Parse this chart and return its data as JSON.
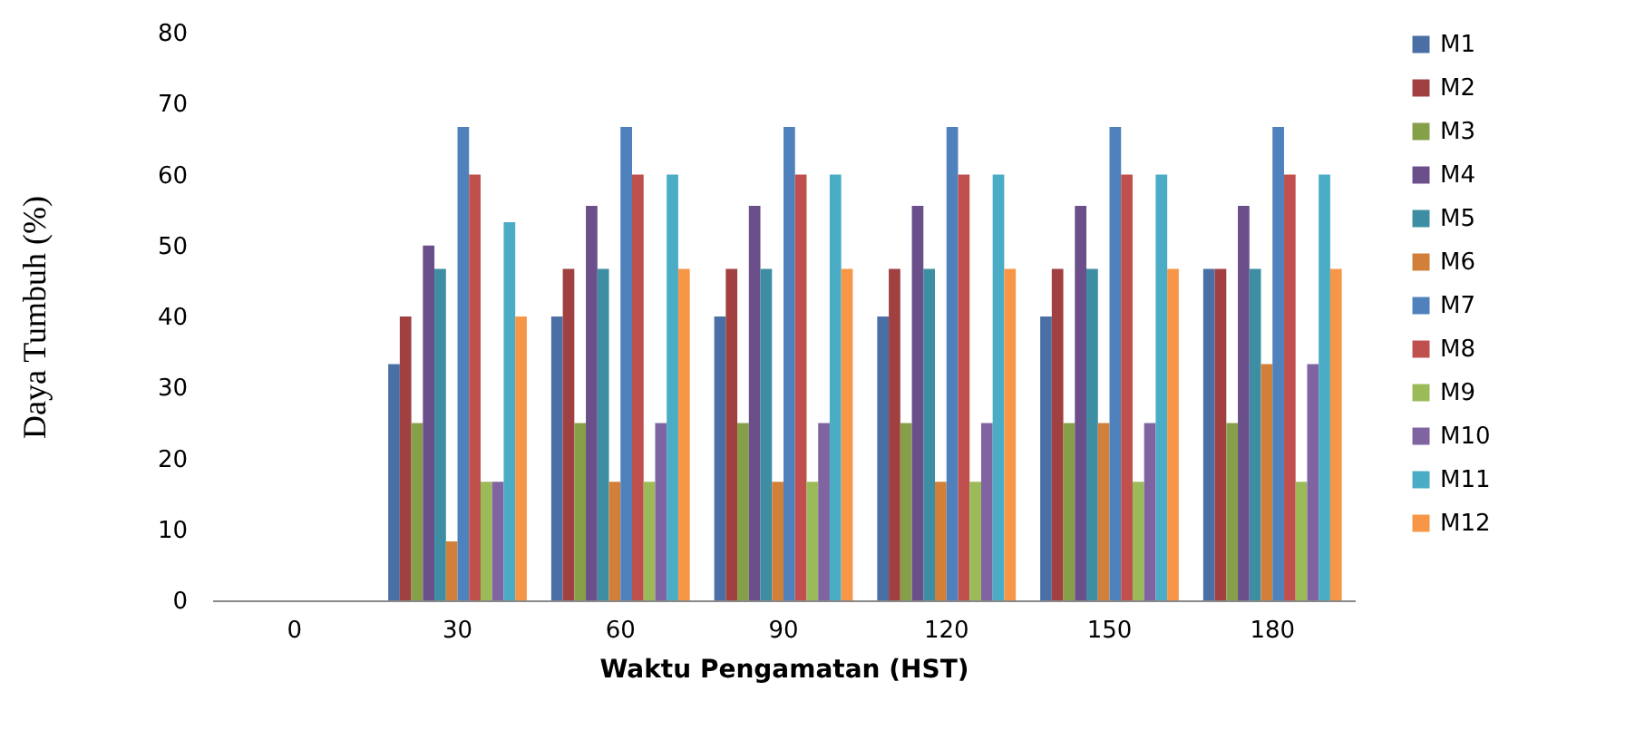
{
  "chart_data": {
    "type": "bar",
    "xlabel": "Waktu Pengamatan (HST)",
    "ylabel": "Daya Tumbuh (%)",
    "categories": [
      "0",
      "30",
      "60",
      "90",
      "120",
      "150",
      "180"
    ],
    "series": [
      {
        "name": "M1",
        "color": "#4a6fa5",
        "values": [
          0,
          33.3,
          40,
          40,
          40,
          40,
          46.7
        ]
      },
      {
        "name": "M2",
        "color": "#a04040",
        "values": [
          0,
          40,
          46.7,
          46.7,
          46.7,
          46.7,
          46.7
        ]
      },
      {
        "name": "M3",
        "color": "#86a04a",
        "values": [
          0,
          25,
          25,
          25,
          25,
          25,
          25
        ]
      },
      {
        "name": "M4",
        "color": "#6b4f8a",
        "values": [
          0,
          50,
          55.6,
          55.6,
          55.6,
          55.6,
          55.6
        ]
      },
      {
        "name": "M5",
        "color": "#3d8ea3",
        "values": [
          0,
          46.7,
          46.7,
          46.7,
          46.7,
          46.7,
          46.7
        ]
      },
      {
        "name": "M6",
        "color": "#d27f3a",
        "values": [
          0,
          8.3,
          16.7,
          16.7,
          16.7,
          25,
          33.3
        ]
      },
      {
        "name": "M7",
        "color": "#4f81bd",
        "values": [
          0,
          66.7,
          66.7,
          66.7,
          66.7,
          66.7,
          66.7
        ]
      },
      {
        "name": "M8",
        "color": "#c0504d",
        "values": [
          0,
          60,
          60,
          60,
          60,
          60,
          60
        ]
      },
      {
        "name": "M9",
        "color": "#9bbb59",
        "values": [
          0,
          16.7,
          16.7,
          16.7,
          16.7,
          16.7,
          16.7
        ]
      },
      {
        "name": "M10",
        "color": "#8064a2",
        "values": [
          0,
          16.7,
          25,
          25,
          25,
          25,
          33.3
        ]
      },
      {
        "name": "M11",
        "color": "#4bacc6",
        "values": [
          0,
          53.3,
          60,
          60,
          60,
          60,
          60
        ]
      },
      {
        "name": "M12",
        "color": "#f79646",
        "values": [
          0,
          40,
          46.7,
          46.7,
          46.7,
          46.7,
          46.7
        ]
      }
    ],
    "ylim": [
      0,
      80
    ],
    "yticks": [
      0,
      10,
      20,
      30,
      40,
      50,
      60,
      70,
      80
    ],
    "grid": false,
    "legend": "right"
  }
}
